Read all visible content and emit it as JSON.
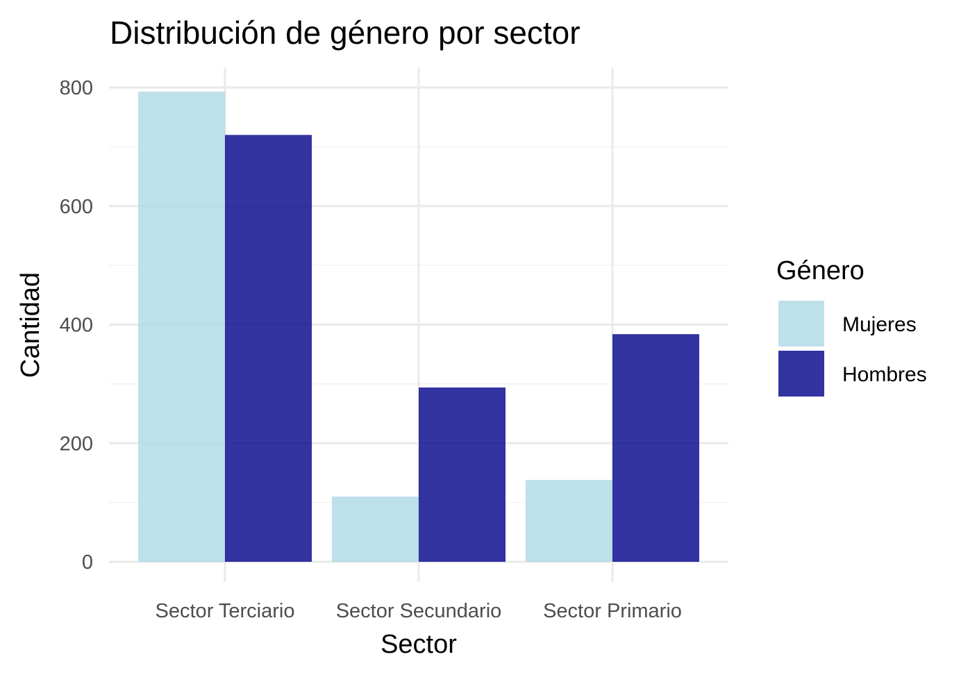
{
  "chart_data": {
    "type": "bar",
    "title": "Distribución de género por sector",
    "xlabel": "Sector",
    "ylabel": "Cantidad",
    "categories": [
      "Sector Terciario",
      "Sector Secundario",
      "Sector Primario"
    ],
    "series": [
      {
        "name": "Mujeres",
        "values": [
          793,
          110,
          138
        ],
        "color": "#add8e6"
      },
      {
        "name": "Hombres",
        "values": [
          720,
          294,
          384
        ],
        "color": "#00008b"
      }
    ],
    "ylim": [
      0,
      835
    ],
    "yticks": [
      0,
      200,
      400,
      600,
      800
    ],
    "yticks_labels": [
      "0",
      "200",
      "400",
      "600",
      "800"
    ],
    "grid": true,
    "legend": {
      "title": "Género",
      "position": "right"
    },
    "bar_opacity": 0.8
  }
}
